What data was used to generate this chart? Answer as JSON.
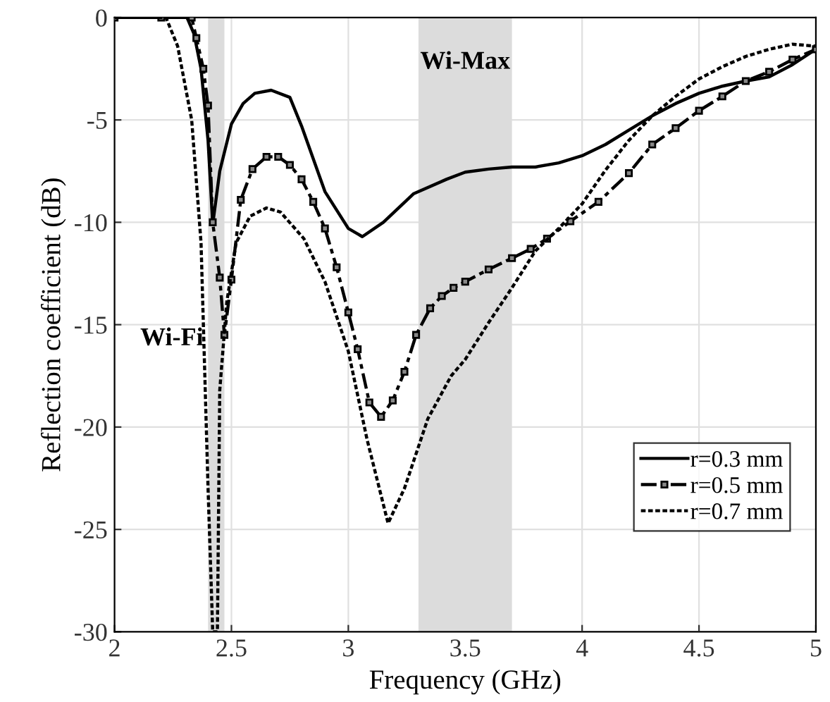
{
  "chart_data": {
    "type": "line",
    "xlabel": "Frequency (GHz)",
    "ylabel": "Reflection coefficient (dB)",
    "xlim": [
      2,
      5
    ],
    "ylim": [
      -30,
      0
    ],
    "xticks": [
      2,
      2.5,
      3,
      3.5,
      4,
      4.5,
      5
    ],
    "yticks": [
      -30,
      -25,
      -20,
      -15,
      -10,
      -5,
      0
    ],
    "grid": true,
    "legend": "bottom right",
    "bands": [
      {
        "axis": "x",
        "from": 2.4,
        "to": 2.47,
        "label": "Wi-Fi",
        "color": "#dcdcdc"
      },
      {
        "axis": "x",
        "from": 3.3,
        "to": 3.7,
        "label": "Wi-Max",
        "color": "#dcdcdc"
      }
    ],
    "series": [
      {
        "name": "r=0.3 mm",
        "color": "#000000",
        "line_style": "solid",
        "marker": "none",
        "x": [
          2,
          2.2,
          2.31,
          2.34,
          2.37,
          2.4,
          2.42,
          2.45,
          2.5,
          2.55,
          2.6,
          2.67,
          2.75,
          2.8,
          2.9,
          3.0,
          3.06,
          3.15,
          3.28,
          3.42,
          3.5,
          3.6,
          3.7,
          3.8,
          3.9,
          4.0,
          4.1,
          4.2,
          4.3,
          4.4,
          4.5,
          4.6,
          4.7,
          4.8,
          4.9,
          5.0
        ],
        "values": [
          0,
          0,
          0,
          -0.8,
          -2.5,
          -6,
          -10.1,
          -7.5,
          -5.2,
          -4.2,
          -3.7,
          -3.55,
          -3.9,
          -5.3,
          -8.5,
          -10.3,
          -10.7,
          -10.0,
          -8.6,
          -7.9,
          -7.55,
          -7.4,
          -7.3,
          -7.3,
          -7.1,
          -6.75,
          -6.2,
          -5.5,
          -4.8,
          -4.2,
          -3.7,
          -3.35,
          -3.1,
          -2.9,
          -2.3,
          -1.55
        ]
      },
      {
        "name": "r=0.5 mm",
        "color": "#000000",
        "line_style": "dashed",
        "marker": "square",
        "x": [
          2,
          2.2,
          2.33,
          2.35,
          2.38,
          2.4,
          2.42,
          2.45,
          2.47,
          2.5,
          2.54,
          2.59,
          2.65,
          2.7,
          2.75,
          2.8,
          2.85,
          2.9,
          2.95,
          3.0,
          3.04,
          3.09,
          3.14,
          3.19,
          3.24,
          3.29,
          3.35,
          3.4,
          3.45,
          3.5,
          3.6,
          3.7,
          3.78,
          3.85,
          3.95,
          4.07,
          4.2,
          4.3,
          4.4,
          4.5,
          4.6,
          4.7,
          4.8,
          4.9,
          5.0
        ],
        "values": [
          0,
          0,
          0,
          -1,
          -2.5,
          -4.3,
          -10,
          -12.7,
          -15.5,
          -12.8,
          -8.9,
          -7.4,
          -6.8,
          -6.8,
          -7.2,
          -7.9,
          -9.0,
          -10.3,
          -12.2,
          -14.4,
          -16.2,
          -18.8,
          -19.5,
          -18.7,
          -17.3,
          -15.5,
          -14.2,
          -13.6,
          -13.2,
          -12.9,
          -12.3,
          -11.75,
          -11.3,
          -10.8,
          -9.95,
          -9.0,
          -7.6,
          -6.2,
          -5.4,
          -4.55,
          -3.85,
          -3.1,
          -2.65,
          -2.05,
          -1.55
        ]
      },
      {
        "name": "r=0.7 mm",
        "color": "#000000",
        "line_style": "dotted",
        "marker": "none",
        "x": [
          2,
          2.22,
          2.27,
          2.33,
          2.37,
          2.4,
          2.42,
          2.44,
          2.45,
          2.48,
          2.52,
          2.58,
          2.65,
          2.71,
          2.81,
          2.9,
          3.0,
          3.08,
          3.17,
          3.24,
          3.34,
          3.44,
          3.5,
          3.6,
          3.7,
          3.8,
          3.9,
          4.0,
          4.1,
          4.2,
          4.3,
          4.4,
          4.5,
          4.6,
          4.7,
          4.8,
          4.9,
          5.0
        ],
        "values": [
          0,
          0,
          -1.4,
          -5,
          -11,
          -23,
          -30,
          -30,
          -18.2,
          -13.9,
          -11,
          -9.7,
          -9.3,
          -9.5,
          -10.8,
          -12.9,
          -16.3,
          -20.6,
          -24.7,
          -23,
          -19.6,
          -17.5,
          -16.7,
          -14.9,
          -13.2,
          -11.4,
          -10.3,
          -9.1,
          -7.45,
          -6.0,
          -4.8,
          -3.85,
          -3.0,
          -2.4,
          -1.9,
          -1.55,
          -1.3,
          -1.4
        ]
      }
    ]
  }
}
